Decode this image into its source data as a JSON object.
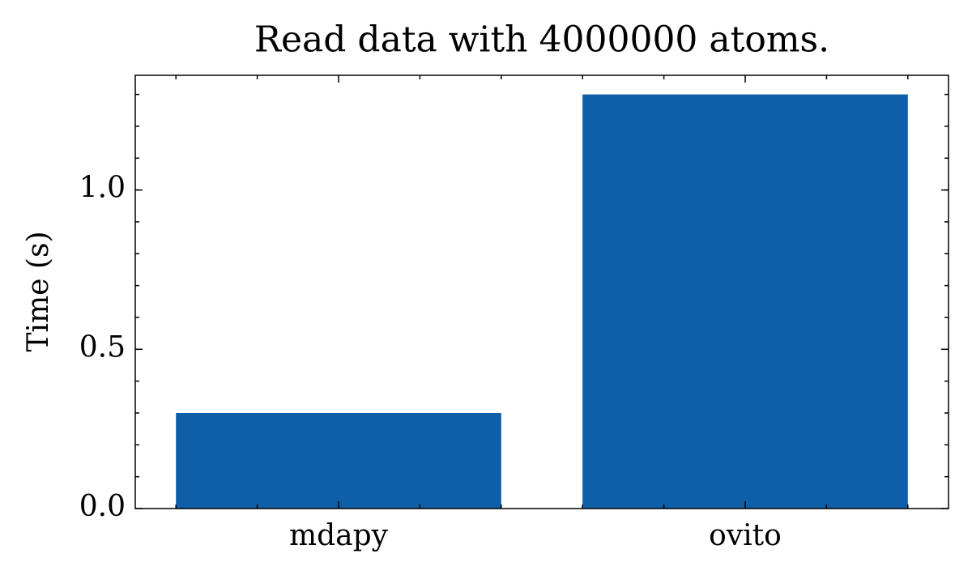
{
  "chart_data": {
    "type": "bar",
    "title": "Read data with 4000000 atoms.",
    "ylabel": "Time (s)",
    "categories": [
      "mdapy",
      "ovito"
    ],
    "values": [
      0.3,
      1.3
    ],
    "color": "#0f5ea8",
    "ylim": [
      0,
      1.36
    ],
    "yticks": [
      {
        "value": 0,
        "label": "0.0"
      },
      {
        "value": 0.5,
        "label": "0.5"
      },
      {
        "value": 1.0,
        "label": "1.0"
      }
    ]
  }
}
